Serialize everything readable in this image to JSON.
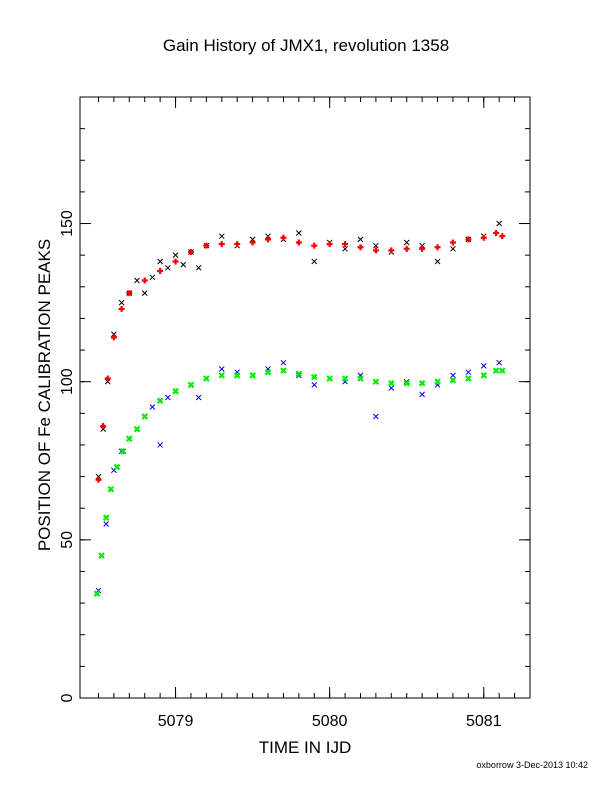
{
  "chart_data": {
    "type": "scatter",
    "title": "Gain History of JMX1, revolution 1358",
    "xlabel": "TIME IN IJD",
    "ylabel": "POSITION OF Fe CALIBRATION PEAKS",
    "xlim": [
      5078.38,
      5081.3
    ],
    "ylim": [
      0,
      190
    ],
    "xticks": [
      5079,
      5080,
      5081
    ],
    "yticks": [
      0,
      50,
      100,
      150
    ],
    "grid": false,
    "series": [
      {
        "color": "#000000",
        "marker": "x",
        "x": [
          5078.5,
          5078.53,
          5078.56,
          5078.6,
          5078.65,
          5078.7,
          5078.75,
          5078.8,
          5078.85,
          5078.9,
          5078.95,
          5079.0,
          5079.05,
          5079.1,
          5079.15,
          5079.2,
          5079.3,
          5079.4,
          5079.5,
          5079.6,
          5079.7,
          5079.8,
          5079.9,
          5080.0,
          5080.1,
          5080.2,
          5080.3,
          5080.4,
          5080.5,
          5080.6,
          5080.7,
          5080.8,
          5080.9,
          5081.0,
          5081.1
        ],
        "y": [
          70,
          85,
          100,
          115,
          125,
          128,
          132,
          128,
          133,
          138,
          136,
          140,
          137,
          141,
          136,
          143,
          146,
          143,
          145,
          146,
          145,
          147,
          138,
          144,
          142,
          145,
          143,
          141,
          144,
          143,
          138,
          142,
          145,
          146,
          150
        ]
      },
      {
        "color": "#ff0000",
        "marker": "+",
        "x": [
          5078.5,
          5078.53,
          5078.56,
          5078.6,
          5078.65,
          5078.7,
          5078.8,
          5078.9,
          5079.0,
          5079.1,
          5079.2,
          5079.3,
          5079.4,
          5079.5,
          5079.6,
          5079.7,
          5079.8,
          5079.9,
          5080.0,
          5080.1,
          5080.2,
          5080.3,
          5080.4,
          5080.5,
          5080.6,
          5080.7,
          5080.8,
          5080.9,
          5081.0,
          5081.08,
          5081.12
        ],
        "y": [
          69,
          86,
          101,
          114,
          123,
          128,
          132,
          135,
          138,
          141,
          143,
          143.5,
          143.5,
          144,
          145,
          145.5,
          144,
          143,
          143.5,
          143.5,
          142.5,
          141.5,
          141.5,
          142,
          142,
          142.5,
          144,
          145,
          145.5,
          147,
          146
        ]
      },
      {
        "color": "#0000ff",
        "marker": "x",
        "x": [
          5078.5,
          5078.55,
          5078.6,
          5078.65,
          5078.7,
          5078.75,
          5078.8,
          5078.85,
          5078.9,
          5078.95,
          5079.0,
          5079.1,
          5079.15,
          5079.2,
          5079.3,
          5079.4,
          5079.5,
          5079.6,
          5079.7,
          5079.8,
          5079.9,
          5080.0,
          5080.1,
          5080.2,
          5080.3,
          5080.4,
          5080.5,
          5080.6,
          5080.7,
          5080.8,
          5080.9,
          5081.0,
          5081.1
        ],
        "y": [
          34,
          55,
          72,
          78,
          82,
          85,
          89,
          92,
          80,
          95,
          97,
          99,
          95,
          101,
          104,
          103,
          102,
          104,
          106,
          102,
          99,
          101,
          100,
          102,
          89,
          98,
          100,
          96,
          99,
          102,
          103,
          105,
          106
        ]
      },
      {
        "color": "#00ee00",
        "marker": "x",
        "x": [
          5078.49,
          5078.52,
          5078.55,
          5078.58,
          5078.62,
          5078.66,
          5078.7,
          5078.75,
          5078.8,
          5078.9,
          5079.0,
          5079.1,
          5079.2,
          5079.3,
          5079.4,
          5079.5,
          5079.6,
          5079.7,
          5079.8,
          5079.9,
          5080.0,
          5080.1,
          5080.2,
          5080.3,
          5080.4,
          5080.5,
          5080.6,
          5080.7,
          5080.8,
          5080.9,
          5081.0,
          5081.08,
          5081.12
        ],
        "y": [
          33,
          45,
          57,
          66,
          73,
          78,
          82,
          85,
          89,
          94,
          97,
          99,
          101,
          102,
          102,
          102,
          103,
          103.5,
          102.5,
          101.5,
          101,
          101,
          101,
          100,
          99.5,
          99.5,
          99.5,
          100,
          100.5,
          101,
          102,
          103.5,
          103.5
        ]
      }
    ]
  },
  "page": {
    "stamp": "oxborrow 3-Dec-2013 10:42"
  }
}
